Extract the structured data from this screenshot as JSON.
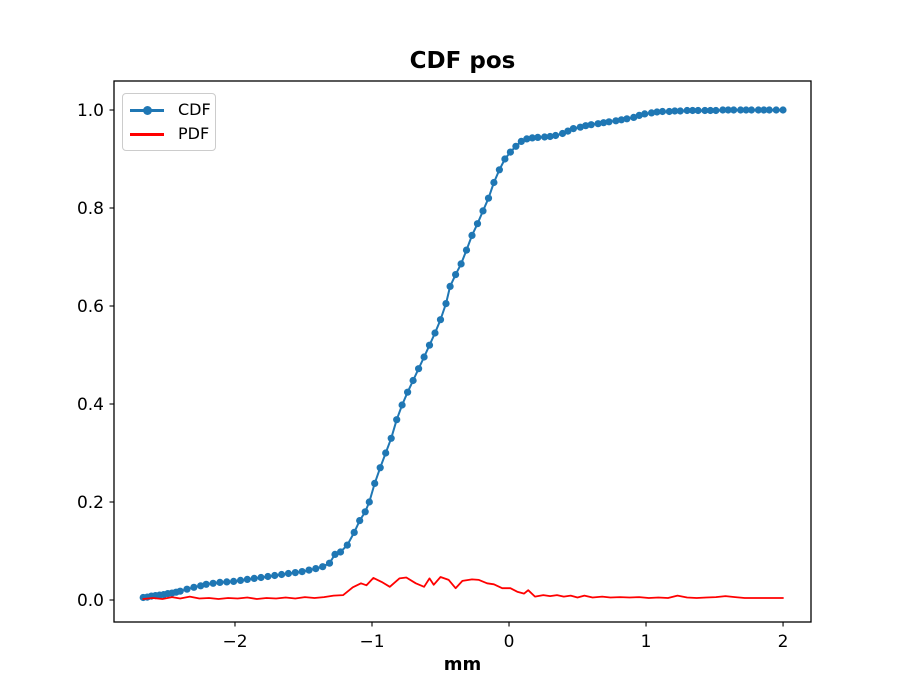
{
  "chart_data": {
    "type": "line",
    "title": "CDF pos",
    "xlabel": "mm",
    "ylabel": "",
    "grid": false,
    "legend_position": "upper left",
    "xlim": [
      -2.883,
      2.204
    ],
    "ylim": [
      -0.0449,
      1.0592
    ],
    "xticks": {
      "values": [
        -2,
        -1,
        0,
        1,
        2
      ],
      "labels": [
        "−2",
        "−1",
        "0",
        "1",
        "2"
      ]
    },
    "yticks": {
      "values": [
        0.0,
        0.2,
        0.4,
        0.6,
        0.8,
        1.0
      ],
      "labels": [
        "0.0",
        "0.2",
        "0.4",
        "0.6",
        "0.8",
        "1.0"
      ]
    },
    "series": [
      {
        "name": "CDF",
        "color": "#1f77b4",
        "marker": "circle",
        "marker_size": 3.6,
        "line_width": 2,
        "points": [
          [
            -2.67,
            0.005
          ],
          [
            -2.64,
            0.006
          ],
          [
            -2.61,
            0.008
          ],
          [
            -2.58,
            0.009
          ],
          [
            -2.55,
            0.01
          ],
          [
            -2.52,
            0.011
          ],
          [
            -2.49,
            0.013
          ],
          [
            -2.46,
            0.014
          ],
          [
            -2.43,
            0.016
          ],
          [
            -2.4,
            0.018
          ],
          [
            -2.35,
            0.022
          ],
          [
            -2.3,
            0.026
          ],
          [
            -2.25,
            0.029
          ],
          [
            -2.21,
            0.032
          ],
          [
            -2.16,
            0.034
          ],
          [
            -2.11,
            0.036
          ],
          [
            -2.06,
            0.037
          ],
          [
            -2.01,
            0.038
          ],
          [
            -1.96,
            0.04
          ],
          [
            -1.91,
            0.042
          ],
          [
            -1.86,
            0.044
          ],
          [
            -1.81,
            0.046
          ],
          [
            -1.76,
            0.048
          ],
          [
            -1.71,
            0.05
          ],
          [
            -1.66,
            0.052
          ],
          [
            -1.61,
            0.054
          ],
          [
            -1.56,
            0.056
          ],
          [
            -1.51,
            0.058
          ],
          [
            -1.46,
            0.061
          ],
          [
            -1.41,
            0.064
          ],
          [
            -1.36,
            0.068
          ],
          [
            -1.31,
            0.075
          ],
          [
            -1.27,
            0.093
          ],
          [
            -1.23,
            0.098
          ],
          [
            -1.18,
            0.112
          ],
          [
            -1.13,
            0.138
          ],
          [
            -1.09,
            0.162
          ],
          [
            -1.05,
            0.18
          ],
          [
            -1.02,
            0.2
          ],
          [
            -0.98,
            0.238
          ],
          [
            -0.94,
            0.27
          ],
          [
            -0.9,
            0.3
          ],
          [
            -0.86,
            0.33
          ],
          [
            -0.82,
            0.368
          ],
          [
            -0.78,
            0.398
          ],
          [
            -0.74,
            0.424
          ],
          [
            -0.7,
            0.448
          ],
          [
            -0.66,
            0.472
          ],
          [
            -0.62,
            0.496
          ],
          [
            -0.58,
            0.52
          ],
          [
            -0.54,
            0.545
          ],
          [
            -0.5,
            0.572
          ],
          [
            -0.46,
            0.605
          ],
          [
            -0.43,
            0.64
          ],
          [
            -0.39,
            0.664
          ],
          [
            -0.35,
            0.686
          ],
          [
            -0.31,
            0.714
          ],
          [
            -0.27,
            0.744
          ],
          [
            -0.23,
            0.768
          ],
          [
            -0.19,
            0.794
          ],
          [
            -0.15,
            0.82
          ],
          [
            -0.11,
            0.852
          ],
          [
            -0.07,
            0.878
          ],
          [
            -0.03,
            0.9
          ],
          [
            0.01,
            0.914
          ],
          [
            0.05,
            0.926
          ],
          [
            0.09,
            0.936
          ],
          [
            0.13,
            0.941
          ],
          [
            0.17,
            0.943
          ],
          [
            0.21,
            0.944
          ],
          [
            0.26,
            0.945
          ],
          [
            0.3,
            0.946
          ],
          [
            0.34,
            0.948
          ],
          [
            0.39,
            0.952
          ],
          [
            0.43,
            0.957
          ],
          [
            0.47,
            0.962
          ],
          [
            0.52,
            0.965
          ],
          [
            0.56,
            0.968
          ],
          [
            0.6,
            0.97
          ],
          [
            0.65,
            0.972
          ],
          [
            0.69,
            0.974
          ],
          [
            0.73,
            0.976
          ],
          [
            0.78,
            0.978
          ],
          [
            0.82,
            0.98
          ],
          [
            0.86,
            0.982
          ],
          [
            0.91,
            0.985
          ],
          [
            0.95,
            0.989
          ],
          [
            0.99,
            0.992
          ],
          [
            1.04,
            0.994
          ],
          [
            1.08,
            0.996
          ],
          [
            1.12,
            0.997
          ],
          [
            1.17,
            0.997
          ],
          [
            1.21,
            0.998
          ],
          [
            1.25,
            0.998
          ],
          [
            1.3,
            0.999
          ],
          [
            1.34,
            0.999
          ],
          [
            1.38,
            0.999
          ],
          [
            1.43,
            0.999
          ],
          [
            1.47,
            0.999
          ],
          [
            1.51,
            0.999
          ],
          [
            1.56,
            1.0
          ],
          [
            1.6,
            1.0
          ],
          [
            1.64,
            1.0
          ],
          [
            1.69,
            1.0
          ],
          [
            1.73,
            1.0
          ],
          [
            1.77,
            1.0
          ],
          [
            1.82,
            1.0
          ],
          [
            1.86,
            1.0
          ],
          [
            1.9,
            1.0
          ],
          [
            1.95,
            1.0
          ],
          [
            2.0,
            1.0
          ]
        ]
      },
      {
        "name": "PDF",
        "color": "#ff0000",
        "marker": "none",
        "marker_size": 0,
        "line_width": 1.8,
        "points": [
          [
            -2.67,
            0.002
          ],
          [
            -2.6,
            0.004
          ],
          [
            -2.53,
            0.002
          ],
          [
            -2.46,
            0.006
          ],
          [
            -2.4,
            0.003
          ],
          [
            -2.33,
            0.007
          ],
          [
            -2.26,
            0.003
          ],
          [
            -2.19,
            0.004
          ],
          [
            -2.12,
            0.002
          ],
          [
            -2.05,
            0.004
          ],
          [
            -1.98,
            0.003
          ],
          [
            -1.91,
            0.005
          ],
          [
            -1.84,
            0.002
          ],
          [
            -1.77,
            0.004
          ],
          [
            -1.7,
            0.003
          ],
          [
            -1.63,
            0.005
          ],
          [
            -1.56,
            0.003
          ],
          [
            -1.49,
            0.006
          ],
          [
            -1.42,
            0.004
          ],
          [
            -1.35,
            0.006
          ],
          [
            -1.28,
            0.009
          ],
          [
            -1.21,
            0.01
          ],
          [
            -1.14,
            0.026
          ],
          [
            -1.08,
            0.034
          ],
          [
            -1.04,
            0.03
          ],
          [
            -0.99,
            0.045
          ],
          [
            -0.93,
            0.037
          ],
          [
            -0.87,
            0.027
          ],
          [
            -0.8,
            0.044
          ],
          [
            -0.75,
            0.046
          ],
          [
            -0.68,
            0.034
          ],
          [
            -0.62,
            0.027
          ],
          [
            -0.58,
            0.044
          ],
          [
            -0.55,
            0.031
          ],
          [
            -0.5,
            0.047
          ],
          [
            -0.44,
            0.041
          ],
          [
            -0.39,
            0.024
          ],
          [
            -0.34,
            0.039
          ],
          [
            -0.27,
            0.042
          ],
          [
            -0.22,
            0.041
          ],
          [
            -0.16,
            0.034
          ],
          [
            -0.11,
            0.032
          ],
          [
            -0.05,
            0.024
          ],
          [
            0.01,
            0.024
          ],
          [
            0.06,
            0.017
          ],
          [
            0.11,
            0.013
          ],
          [
            0.14,
            0.02
          ],
          [
            0.19,
            0.007
          ],
          [
            0.25,
            0.01
          ],
          [
            0.3,
            0.008
          ],
          [
            0.35,
            0.01
          ],
          [
            0.4,
            0.007
          ],
          [
            0.45,
            0.009
          ],
          [
            0.5,
            0.005
          ],
          [
            0.55,
            0.009
          ],
          [
            0.61,
            0.005
          ],
          [
            0.68,
            0.007
          ],
          [
            0.74,
            0.005
          ],
          [
            0.81,
            0.006
          ],
          [
            0.88,
            0.005
          ],
          [
            0.95,
            0.006
          ],
          [
            1.02,
            0.004
          ],
          [
            1.09,
            0.005
          ],
          [
            1.16,
            0.004
          ],
          [
            1.23,
            0.009
          ],
          [
            1.3,
            0.005
          ],
          [
            1.37,
            0.004
          ],
          [
            1.44,
            0.005
          ],
          [
            1.51,
            0.006
          ],
          [
            1.58,
            0.008
          ],
          [
            1.65,
            0.006
          ],
          [
            1.72,
            0.004
          ],
          [
            1.79,
            0.004
          ],
          [
            1.86,
            0.004
          ],
          [
            1.93,
            0.004
          ],
          [
            2.0,
            0.004
          ]
        ]
      }
    ]
  }
}
